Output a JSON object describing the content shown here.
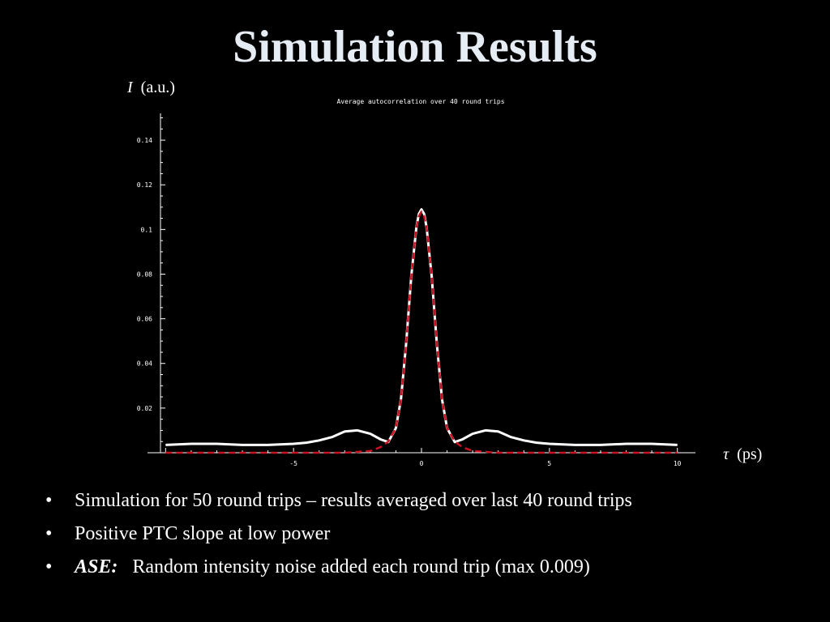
{
  "slide": {
    "title": "Simulation Results",
    "bullets": [
      {
        "mark": "•",
        "lead": "",
        "text": "Simulation for 50 round trips – results averaged over last 40 round trips"
      },
      {
        "mark": "•",
        "lead": "",
        "text": "Positive PTC slope at low power"
      },
      {
        "mark": "•",
        "lead": "ASE:",
        "text": "Random intensity noise added each round trip (max 0.009)"
      }
    ]
  },
  "chart_data": {
    "type": "line",
    "title": "Average autocorrelation over 40 round trips",
    "ylabel_symbol": "I",
    "ylabel_unit": "(a.u.)",
    "xlabel_symbol": "τ",
    "xlabel_unit": "(ps)",
    "xlim": [
      -10.2,
      10.2
    ],
    "ylim": [
      0,
      0.152
    ],
    "x_ticks": [
      {
        "value": -5,
        "label": "-5"
      },
      {
        "value": 0,
        "label": "0"
      },
      {
        "value": 5,
        "label": "5"
      },
      {
        "value": 10,
        "label": "10"
      }
    ],
    "y_ticks": [
      {
        "value": 0.02,
        "label": "0.02"
      },
      {
        "value": 0.04,
        "label": "0.04"
      },
      {
        "value": 0.06,
        "label": "0.06"
      },
      {
        "value": 0.08,
        "label": "0.08"
      },
      {
        "value": 0.1,
        "label": "0.1"
      },
      {
        "value": 0.12,
        "label": "0.12"
      },
      {
        "value": 0.14,
        "label": "0.14"
      }
    ],
    "grid": false,
    "series": [
      {
        "style": "solid",
        "color": "#ffffff",
        "x": [
          -10,
          -9,
          -8,
          -7,
          -6,
          -5,
          -4.5,
          -4,
          -3.5,
          -3,
          -2.5,
          -2,
          -1.6,
          -1.3,
          -1,
          -0.8,
          -0.6,
          -0.4,
          -0.2,
          -0.1,
          0,
          0.1,
          0.2,
          0.4,
          0.6,
          0.8,
          1,
          1.3,
          1.6,
          2,
          2.5,
          3,
          3.5,
          4,
          4.5,
          5,
          6,
          7,
          8,
          9,
          10
        ],
        "y": [
          0.0035,
          0.004,
          0.004,
          0.0035,
          0.0035,
          0.004,
          0.0045,
          0.0055,
          0.007,
          0.0095,
          0.01,
          0.0085,
          0.006,
          0.0048,
          0.011,
          0.024,
          0.049,
          0.079,
          0.101,
          0.107,
          0.109,
          0.107,
          0.101,
          0.079,
          0.049,
          0.024,
          0.011,
          0.0048,
          0.006,
          0.0085,
          0.01,
          0.0095,
          0.007,
          0.0055,
          0.0045,
          0.004,
          0.0035,
          0.0035,
          0.004,
          0.004,
          0.0035
        ]
      },
      {
        "style": "dashed",
        "color": "#cc1122",
        "x": [
          -10,
          -8,
          -6,
          -4,
          -3,
          -2,
          -1.6,
          -1.3,
          -1,
          -0.8,
          -0.6,
          -0.4,
          -0.2,
          -0.1,
          0,
          0.1,
          0.2,
          0.4,
          0.6,
          0.8,
          1,
          1.3,
          1.6,
          2,
          3,
          4,
          6,
          8,
          10
        ],
        "y": [
          0,
          0,
          0,
          0,
          0,
          0.0008,
          0.0025,
          0.005,
          0.011,
          0.024,
          0.049,
          0.079,
          0.101,
          0.106,
          0.108,
          0.106,
          0.101,
          0.079,
          0.049,
          0.024,
          0.011,
          0.005,
          0.0025,
          0.0008,
          0,
          0,
          0,
          0,
          0
        ]
      }
    ]
  }
}
